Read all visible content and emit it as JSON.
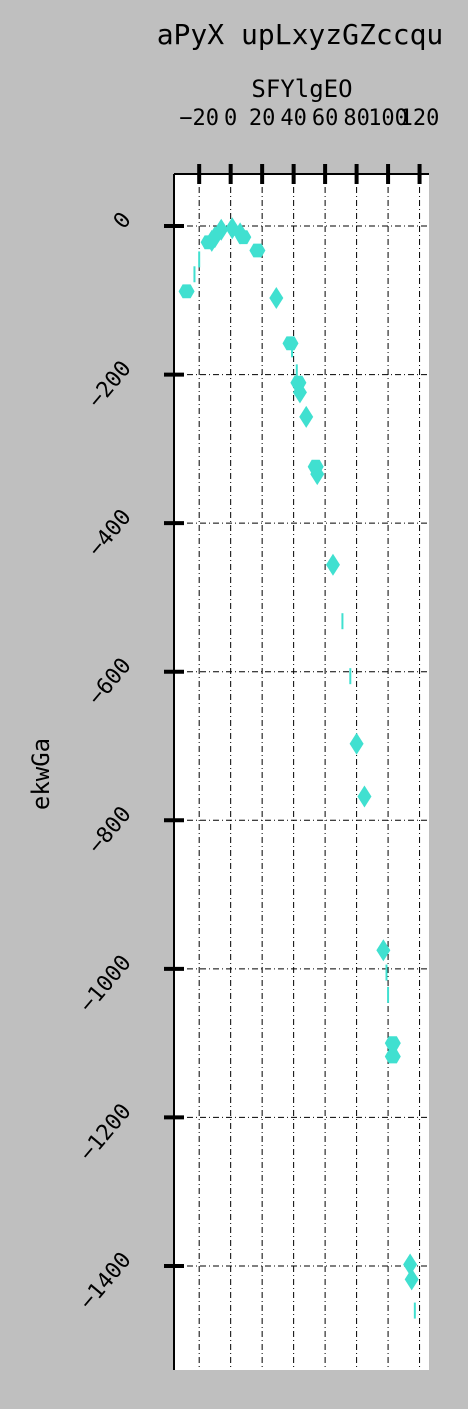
{
  "chart_data": {
    "type": "scatter",
    "title": "aPyX upLxyzGZccqu",
    "xlabel": "SFYlgEO",
    "ylabel": "ekwGa",
    "x_ticks": [
      -20,
      0,
      20,
      40,
      60,
      80,
      100,
      120
    ],
    "y_ticks": [
      0,
      -200,
      -400,
      -600,
      -800,
      -1000,
      -1200,
      -1400
    ],
    "xlim": [
      -36,
      126
    ],
    "ylim": [
      -1540,
      70
    ],
    "grid": true,
    "x_axis_position": "top",
    "marker_color": "#40e0d0",
    "points": [
      {
        "x": -28,
        "y": -88,
        "marker": "hexagon"
      },
      {
        "x": -23,
        "y": -65,
        "marker": "vline"
      },
      {
        "x": -20,
        "y": -45,
        "marker": "vline"
      },
      {
        "x": -14,
        "y": -22,
        "marker": "hexagon"
      },
      {
        "x": -12,
        "y": -20,
        "marker": "diamond"
      },
      {
        "x": -10,
        "y": -15,
        "marker": "diamond"
      },
      {
        "x": -6,
        "y": -5,
        "marker": "diamond"
      },
      {
        "x": 1,
        "y": -3,
        "marker": "diamond"
      },
      {
        "x": 6,
        "y": -10,
        "marker": "diamond"
      },
      {
        "x": 8,
        "y": -15,
        "marker": "hexagon"
      },
      {
        "x": 17,
        "y": -33,
        "marker": "hexagon"
      },
      {
        "x": 29,
        "y": -97,
        "marker": "diamond"
      },
      {
        "x": 38,
        "y": -158,
        "marker": "hexagon"
      },
      {
        "x": 39,
        "y": -166,
        "marker": "vline"
      },
      {
        "x": 42,
        "y": -197,
        "marker": "vline"
      },
      {
        "x": 43,
        "y": -211,
        "marker": "hexagon"
      },
      {
        "x": 44,
        "y": -224,
        "marker": "diamond"
      },
      {
        "x": 48,
        "y": -257,
        "marker": "diamond"
      },
      {
        "x": 54,
        "y": -324,
        "marker": "hexagon"
      },
      {
        "x": 55,
        "y": -334,
        "marker": "diamond"
      },
      {
        "x": 65,
        "y": -456,
        "marker": "diamond"
      },
      {
        "x": 71,
        "y": -532,
        "marker": "vline"
      },
      {
        "x": 76,
        "y": -606,
        "marker": "vline"
      },
      {
        "x": 80,
        "y": -697,
        "marker": "diamond"
      },
      {
        "x": 85,
        "y": -768,
        "marker": "diamond"
      },
      {
        "x": 97,
        "y": -975,
        "marker": "diamond"
      },
      {
        "x": 99,
        "y": -1005,
        "marker": "vline"
      },
      {
        "x": 100,
        "y": -1035,
        "marker": "vline"
      },
      {
        "x": 103,
        "y": -1100,
        "marker": "hexagon"
      },
      {
        "x": 103,
        "y": -1118,
        "marker": "hexagon"
      },
      {
        "x": 114,
        "y": -1398,
        "marker": "diamond"
      },
      {
        "x": 115,
        "y": -1418,
        "marker": "diamond"
      },
      {
        "x": 117,
        "y": -1460,
        "marker": "vline"
      }
    ]
  }
}
